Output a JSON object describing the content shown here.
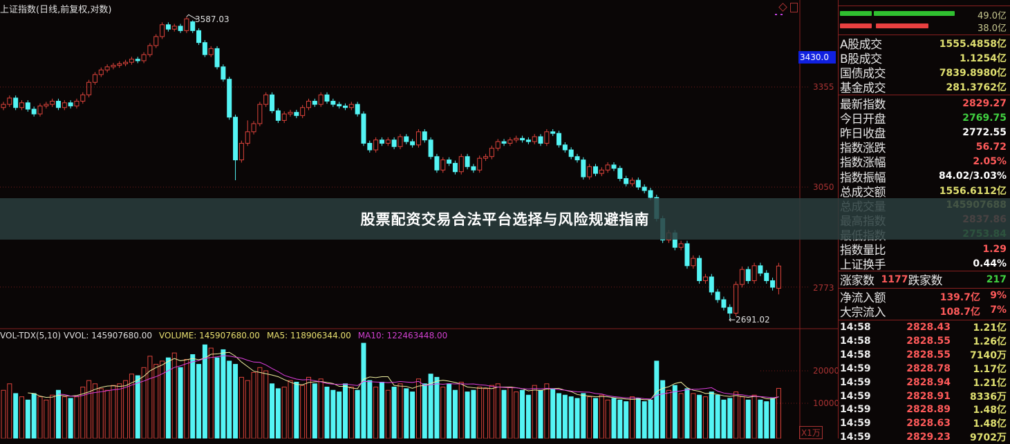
{
  "header": {
    "title": "上证指数(日线,前复权,对数)"
  },
  "annotations": {
    "high_label": "3587.03",
    "low_label": "←2691.02"
  },
  "price_axis": {
    "current_value": "3430.0",
    "ticks": [
      "3355",
      "3050",
      "2773"
    ]
  },
  "volume_header": {
    "indicator": "VOL-TDX(5,10)",
    "vvol": "VVOL: 145907680.00",
    "volume": "VOLUME: 145907680.00",
    "ma5": "MA5: 118906344.00",
    "ma10": "MA10: 122463448.00"
  },
  "volume_axis": {
    "ticks": [
      "20000",
      "10000"
    ],
    "unit": "X1万"
  },
  "banner": {
    "text": "股票配资交易合法平台选择与风险规避指南"
  },
  "colors": {
    "up": "#e0443c",
    "down": "#54f4f4",
    "ma5": "#f0f0a0",
    "ma10": "#e040e0",
    "grid": "#7a1a1a",
    "panel_border": "#8a2020",
    "current_box": "#1020e0"
  },
  "panel": {
    "bars": [
      {
        "value": "49.0亿",
        "color": "#30c030",
        "fraction": 0.66
      },
      {
        "value": "38.0亿",
        "color": "#e84040",
        "fraction": 0.52
      }
    ],
    "turnover": [
      {
        "label": "A股成交",
        "value": "1555.4858亿",
        "color": "#e0e070"
      },
      {
        "label": "B股成交",
        "value": "1.1254亿",
        "color": "#e0e070"
      },
      {
        "label": "国债成交",
        "value": "7839.8980亿",
        "color": "#e0e070"
      },
      {
        "label": "基金成交",
        "value": "281.3762亿",
        "color": "#e0e070"
      }
    ],
    "stats": [
      {
        "label": "最新指数",
        "value": "2829.27",
        "color": "#ff5a5a"
      },
      {
        "label": "今日开盘",
        "value": "2769.75",
        "color": "#40d040"
      },
      {
        "label": "昨日收盘",
        "value": "2772.55",
        "color": "#ffffff"
      },
      {
        "label": "指数涨跌",
        "value": "56.72",
        "color": "#ff5a5a"
      },
      {
        "label": "指数涨幅",
        "value": "2.05%",
        "color": "#ff5a5a"
      },
      {
        "label": "指数振幅",
        "value": "84.02/3.03%",
        "color": "#ffffff"
      },
      {
        "label": "总成交额",
        "value": "1556.6112亿",
        "color": "#e0e070"
      },
      {
        "label": "总成交量",
        "value": "145907688",
        "color": "#e0e070"
      },
      {
        "label": "最高指数",
        "value": "2837.86",
        "color": "#ff5a5a"
      },
      {
        "label": "最低指数",
        "value": "2753.84",
        "color": "#40d040"
      },
      {
        "label": "指数量比",
        "value": "1.29",
        "color": "#ff5a5a"
      },
      {
        "label": "上证换手",
        "value": "0.44%",
        "color": "#ffffff"
      }
    ],
    "breadth": {
      "up_label": "涨家数",
      "up_value": "1177",
      "down_label": "跌家数",
      "down_value": "217"
    },
    "flows": [
      {
        "label": "净流入额",
        "amount": "139.7亿",
        "pct": "9%"
      },
      {
        "label": "大宗流入",
        "amount": "108.7亿",
        "pct": "7%"
      }
    ],
    "ticks": [
      {
        "time": "14:58",
        "price": "2828.43",
        "vol": "1.21亿"
      },
      {
        "time": "14:58",
        "price": "2828.55",
        "vol": "1.26亿"
      },
      {
        "time": "14:58",
        "price": "2828.55",
        "vol": "7140万"
      },
      {
        "time": "14:59",
        "price": "2828.78",
        "vol": "1.17亿"
      },
      {
        "time": "14:59",
        "price": "2828.94",
        "vol": "1.21亿"
      },
      {
        "time": "14:59",
        "price": "2828.91",
        "vol": "8336万"
      },
      {
        "time": "14:59",
        "price": "2828.89",
        "vol": "1.48亿"
      },
      {
        "time": "14:59",
        "price": "2828.63",
        "vol": "1.48亿"
      },
      {
        "time": "14:59",
        "price": "2829.23",
        "vol": "9702万"
      }
    ]
  },
  "chart_data": {
    "type": "candlestick",
    "title": "上证指数(日线,前复权,对数)",
    "y_scale": "log",
    "y_ticks": [
      3355,
      3050,
      2773
    ],
    "grid": true,
    "ohlc_order": [
      "open",
      "high",
      "low",
      "close"
    ],
    "candles": [
      [
        3290,
        3308,
        3282,
        3300
      ],
      [
        3300,
        3328,
        3292,
        3320
      ],
      [
        3320,
        3328,
        3282,
        3290
      ],
      [
        3290,
        3313,
        3282,
        3305
      ],
      [
        3305,
        3313,
        3277,
        3285
      ],
      [
        3285,
        3293,
        3262,
        3270
      ],
      [
        3270,
        3303,
        3262,
        3295
      ],
      [
        3295,
        3308,
        3287,
        3300
      ],
      [
        3300,
        3318,
        3292,
        3310
      ],
      [
        3310,
        3318,
        3282,
        3290
      ],
      [
        3290,
        3313,
        3282,
        3305
      ],
      [
        3305,
        3313,
        3287,
        3295
      ],
      [
        3295,
        3318,
        3287,
        3310
      ],
      [
        3310,
        3338,
        3302,
        3330
      ],
      [
        3330,
        3378,
        3322,
        3370
      ],
      [
        3370,
        3403,
        3362,
        3395
      ],
      [
        3395,
        3418,
        3387,
        3410
      ],
      [
        3410,
        3428,
        3402,
        3420
      ],
      [
        3420,
        3433,
        3412,
        3425
      ],
      [
        3425,
        3438,
        3417,
        3430
      ],
      [
        3430,
        3443,
        3422,
        3435
      ],
      [
        3435,
        3453,
        3427,
        3445
      ],
      [
        3445,
        3453,
        3432,
        3440
      ],
      [
        3440,
        3468,
        3432,
        3460
      ],
      [
        3460,
        3498,
        3452,
        3490
      ],
      [
        3490,
        3528,
        3482,
        3520
      ],
      [
        3520,
        3568,
        3512,
        3560
      ],
      [
        3560,
        3568,
        3537,
        3545
      ],
      [
        3545,
        3563,
        3537,
        3555
      ],
      [
        3555,
        3563,
        3532,
        3540
      ],
      [
        3540,
        3587.03,
        3532,
        3580
      ],
      [
        3570,
        3575,
        3532,
        3540
      ],
      [
        3540,
        3548,
        3492,
        3500
      ],
      [
        3500,
        3508,
        3452,
        3460
      ],
      [
        3460,
        3488,
        3452,
        3480
      ],
      [
        3480,
        3488,
        3412,
        3420
      ],
      [
        3420,
        3428,
        3372,
        3380
      ],
      [
        3380,
        3388,
        3252,
        3260
      ],
      [
        3260,
        3268,
        3070,
        3130
      ],
      [
        3130,
        3188,
        3122,
        3180
      ],
      [
        3180,
        3250,
        3172,
        3215
      ],
      [
        3215,
        3248,
        3207,
        3240
      ],
      [
        3240,
        3308,
        3232,
        3300
      ],
      [
        3300,
        3338,
        3292,
        3330
      ],
      [
        3330,
        3338,
        3272,
        3280
      ],
      [
        3280,
        3288,
        3242,
        3250
      ],
      [
        3250,
        3278,
        3242,
        3270
      ],
      [
        3270,
        3283,
        3262,
        3275
      ],
      [
        3275,
        3283,
        3257,
        3265
      ],
      [
        3265,
        3298,
        3257,
        3290
      ],
      [
        3290,
        3318,
        3282,
        3310
      ],
      [
        3310,
        3318,
        3292,
        3300
      ],
      [
        3300,
        3338,
        3292,
        3330
      ],
      [
        3330,
        3338,
        3302,
        3310
      ],
      [
        3310,
        3318,
        3292,
        3300
      ],
      [
        3300,
        3308,
        3287,
        3295
      ],
      [
        3295,
        3303,
        3282,
        3290
      ],
      [
        3290,
        3308,
        3282,
        3300
      ],
      [
        3300,
        3308,
        3262,
        3270
      ],
      [
        3270,
        3278,
        3172,
        3180
      ],
      [
        3180,
        3188,
        3152,
        3160
      ],
      [
        3160,
        3198,
        3152,
        3190
      ],
      [
        3190,
        3198,
        3172,
        3180
      ],
      [
        3180,
        3198,
        3172,
        3190
      ],
      [
        3190,
        3198,
        3162,
        3170
      ],
      [
        3170,
        3208,
        3162,
        3200
      ],
      [
        3200,
        3208,
        3177,
        3185
      ],
      [
        3185,
        3193,
        3167,
        3175
      ],
      [
        3175,
        3223,
        3167,
        3215
      ],
      [
        3215,
        3223,
        3182,
        3190
      ],
      [
        3190,
        3198,
        3132,
        3140
      ],
      [
        3140,
        3148,
        3092,
        3100
      ],
      [
        3100,
        3138,
        3092,
        3130
      ],
      [
        3130,
        3138,
        3112,
        3120
      ],
      [
        3120,
        3128,
        3087,
        3095
      ],
      [
        3095,
        3148,
        3087,
        3140
      ],
      [
        3140,
        3148,
        3102,
        3110
      ],
      [
        3110,
        3118,
        3092,
        3100
      ],
      [
        3100,
        3143,
        3092,
        3135
      ],
      [
        3135,
        3148,
        3127,
        3140
      ],
      [
        3140,
        3173,
        3132,
        3165
      ],
      [
        3165,
        3193,
        3157,
        3185
      ],
      [
        3185,
        3193,
        3172,
        3180
      ],
      [
        3180,
        3198,
        3172,
        3190
      ],
      [
        3190,
        3203,
        3182,
        3195
      ],
      [
        3195,
        3203,
        3182,
        3190
      ],
      [
        3190,
        3198,
        3177,
        3185
      ],
      [
        3185,
        3208,
        3177,
        3200
      ],
      [
        3200,
        3208,
        3172,
        3180
      ],
      [
        3180,
        3223,
        3172,
        3215
      ],
      [
        3215,
        3223,
        3202,
        3210
      ],
      [
        3210,
        3218,
        3167,
        3175
      ],
      [
        3175,
        3183,
        3152,
        3160
      ],
      [
        3160,
        3168,
        3132,
        3140
      ],
      [
        3140,
        3148,
        3122,
        3130
      ],
      [
        3130,
        3138,
        3072,
        3080
      ],
      [
        3080,
        3118,
        3072,
        3110
      ],
      [
        3110,
        3118,
        3082,
        3090
      ],
      [
        3090,
        3108,
        3082,
        3100
      ],
      [
        3100,
        3123,
        3092,
        3115
      ],
      [
        3115,
        3123,
        3097,
        3105
      ],
      [
        3105,
        3113,
        3067,
        3075
      ],
      [
        3075,
        3083,
        3052,
        3060
      ],
      [
        3060,
        3078,
        3052,
        3070
      ],
      [
        3070,
        3078,
        3042,
        3050
      ],
      [
        3050,
        3058,
        3032,
        3040
      ],
      [
        3040,
        3048,
        3012,
        3020
      ],
      [
        3020,
        3028,
        2952,
        2960
      ],
      [
        2960,
        2968,
        2892,
        2900
      ],
      [
        2900,
        2928,
        2892,
        2920
      ],
      [
        2920,
        2928,
        2872,
        2880
      ],
      [
        2880,
        2898,
        2872,
        2890
      ],
      [
        2890,
        2898,
        2822,
        2830
      ],
      [
        2830,
        2858,
        2822,
        2850
      ],
      [
        2850,
        2858,
        2782,
        2790
      ],
      [
        2790,
        2808,
        2782,
        2800
      ],
      [
        2800,
        2808,
        2752,
        2760
      ],
      [
        2760,
        2768,
        2732,
        2740
      ],
      [
        2740,
        2748,
        2712,
        2720
      ],
      [
        2720,
        2728,
        2691.02,
        2705
      ],
      [
        2705,
        2788,
        2697,
        2780
      ],
      [
        2780,
        2828,
        2772,
        2820
      ],
      [
        2820,
        2828,
        2782,
        2790
      ],
      [
        2790,
        2838,
        2782,
        2830
      ],
      [
        2830,
        2838,
        2802,
        2810
      ],
      [
        2810,
        2818,
        2782,
        2790
      ],
      [
        2790,
        2798,
        2764,
        2772.55
      ],
      [
        2769.75,
        2837.86,
        2753.84,
        2829.27
      ]
    ],
    "volume_unit": "X1万",
    "volume_ticks": [
      20000,
      10000
    ],
    "volume": [
      14000,
      16000,
      13000,
      12000,
      11000,
      13000,
      12000,
      11000,
      12500,
      14000,
      12000,
      11500,
      12000,
      15000,
      17000,
      16000,
      14500,
      14000,
      15500,
      16000,
      17000,
      19000,
      18500,
      21000,
      24500,
      22000,
      23000,
      24000,
      25500,
      21000,
      23500,
      25000,
      22000,
      28000,
      27000,
      24000,
      26500,
      23000,
      22000,
      18000,
      17000,
      19500,
      21000,
      20000,
      16000,
      14500,
      15000,
      17000,
      16500,
      15500,
      18000,
      16000,
      17500,
      15000,
      14000,
      13500,
      16000,
      15000,
      14000,
      28500,
      17000,
      15000,
      16500,
      14000,
      15000,
      16000,
      14500,
      13500,
      17500,
      16000,
      19000,
      18000,
      15000,
      16000,
      14000,
      16500,
      13500,
      14000,
      15000,
      14500,
      15500,
      16000,
      14000,
      15000,
      13500,
      14000,
      12500,
      15500,
      14000,
      16000,
      14500,
      13000,
      12500,
      12000,
      11500,
      13000,
      12000,
      11500,
      12500,
      11000,
      11500,
      11000,
      10500,
      12000,
      11500,
      10500,
      11000,
      23000,
      17000,
      14000,
      15500,
      13000,
      14500,
      13000,
      12500,
      12000,
      13500,
      12500,
      11000,
      11500,
      13500,
      12000,
      11000,
      12500,
      11000,
      10500,
      11500,
      14590.8
    ],
    "ma_periods": [
      5,
      10
    ]
  }
}
